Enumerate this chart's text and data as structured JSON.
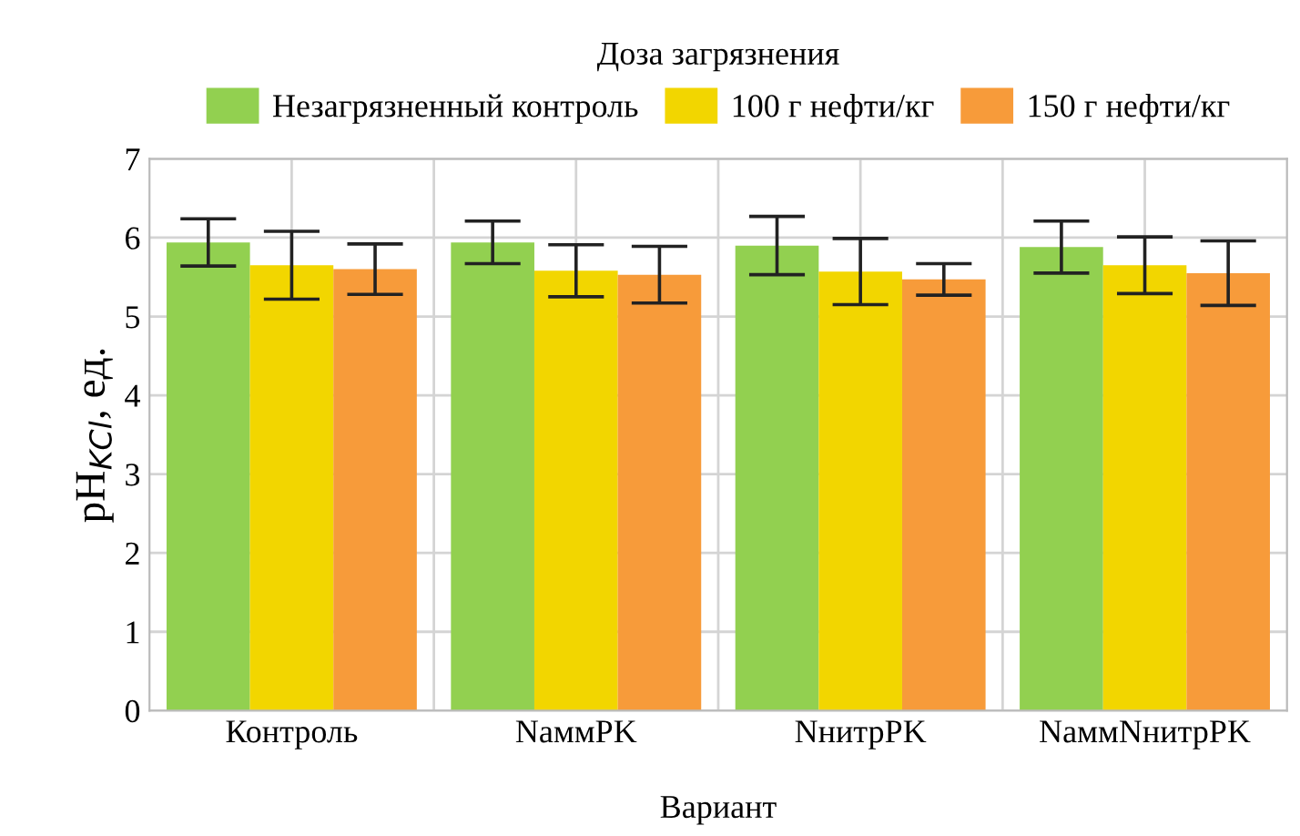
{
  "chart_data": {
    "type": "bar",
    "xlabel": "Вариант",
    "ylabel": "pH$_{KCl}$, ед.",
    "legend_title": "Доза загрязнения",
    "categories": [
      "Контроль",
      "NаммPK",
      "NнитрPK",
      "NаммNнитрPK"
    ],
    "series": [
      {
        "name": "Незагрязненный контроль",
        "color": "#92d050",
        "values": [
          5.94,
          5.94,
          5.9,
          5.88
        ],
        "errors": [
          0.3,
          0.27,
          0.37,
          0.33
        ]
      },
      {
        "name": "100 г нефти/кг",
        "color": "#f2d600",
        "values": [
          5.65,
          5.58,
          5.57,
          5.65
        ],
        "errors": [
          0.43,
          0.33,
          0.42,
          0.36
        ]
      },
      {
        "name": "150 г нефти/кг",
        "color": "#f79b3a",
        "values": [
          5.6,
          5.53,
          5.47,
          5.55
        ],
        "errors": [
          0.32,
          0.36,
          0.2,
          0.41
        ]
      }
    ],
    "ylim": [
      0,
      7
    ],
    "yticks": [
      0,
      1,
      2,
      3,
      4,
      5,
      6,
      7
    ],
    "grid": true,
    "legend": "top"
  }
}
